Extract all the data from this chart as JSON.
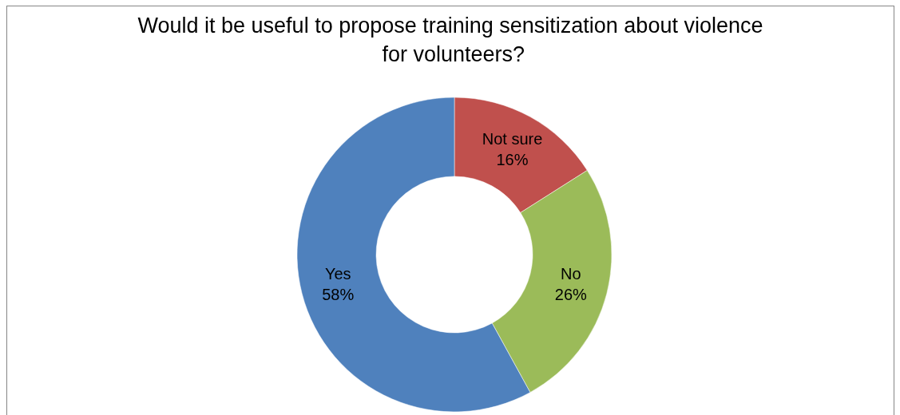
{
  "chart_data": {
    "type": "donut",
    "title": "Would it be useful to propose training sensitization about violence for volunteers?",
    "categories": [
      "Not sure",
      "No",
      "Yes"
    ],
    "values": [
      16,
      26,
      58
    ],
    "colors": [
      "#c0504d",
      "#9bbb59",
      "#4f81bd"
    ],
    "value_labels": [
      "16%",
      "26%",
      "58%"
    ],
    "legend": false
  }
}
